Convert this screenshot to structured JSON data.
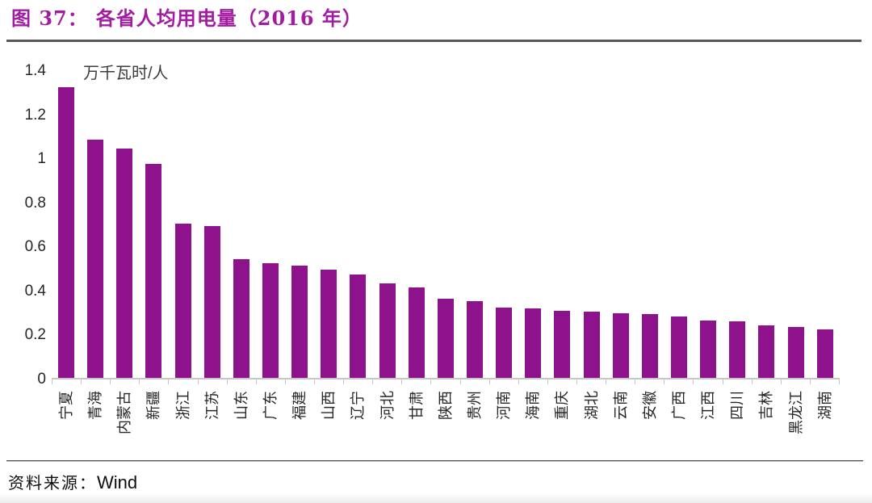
{
  "figure": {
    "title_prefix": "图 37：",
    "title_main": "各省人均用电量（2016 年）",
    "source_label": "资料来源：",
    "source_value": "Wind"
  },
  "chart_data": {
    "type": "bar",
    "title": "图 37：各省人均用电量（2016 年）",
    "unit_label": "万千瓦时/人",
    "xlabel": "",
    "ylabel": "万千瓦时/人",
    "ylim": [
      0,
      1.4
    ],
    "ytick_labels": [
      "0",
      "0.2",
      "0.4",
      "0.6",
      "0.8",
      "1",
      "1.2",
      "1.4"
    ],
    "yticks": [
      0,
      0.2,
      0.4,
      0.6,
      0.8,
      1,
      1.2,
      1.4
    ],
    "grid": "off",
    "legend": "none",
    "categories": [
      "宁夏",
      "青海",
      "内蒙古",
      "新疆",
      "浙江",
      "江苏",
      "山东",
      "广东",
      "福建",
      "山西",
      "辽宁",
      "河北",
      "甘肃",
      "陕西",
      "贵州",
      "河南",
      "海南",
      "重庆",
      "湖北",
      "云南",
      "安徽",
      "广西",
      "江西",
      "四川",
      "吉林",
      "黑龙江",
      "湖南"
    ],
    "values": [
      1.32,
      1.08,
      1.04,
      0.97,
      0.7,
      0.69,
      0.54,
      0.52,
      0.51,
      0.49,
      0.47,
      0.43,
      0.41,
      0.36,
      0.35,
      0.32,
      0.315,
      0.305,
      0.3,
      0.295,
      0.29,
      0.28,
      0.26,
      0.255,
      0.24,
      0.23,
      0.22
    ]
  },
  "colors": {
    "bar": "#8f128d",
    "title": "#a21ca2",
    "axis": "#c6c6c6",
    "rule": "#58585a",
    "text": "#262626"
  }
}
